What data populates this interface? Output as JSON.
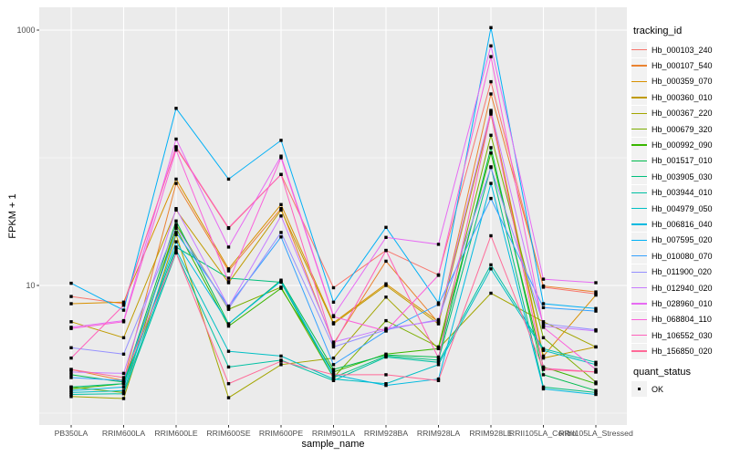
{
  "figure": {
    "background": "#FFFFFF",
    "panel_background": "#EBEBEB",
    "gridline_color": "#FFFFFF",
    "tick_color": "#333333",
    "tick_label_color": "#4D4D4D"
  },
  "legend": {
    "title": "tracking_id"
  },
  "quant_legend": {
    "title": "quant_status",
    "items": [
      {
        "label": "OK",
        "marker": "black-square"
      }
    ]
  },
  "chart_data": {
    "type": "line",
    "title": "",
    "xlabel": "sample_name",
    "ylabel": "FPKM + 1",
    "y_scale": "log10",
    "ylim": [
      0.8,
      1500
    ],
    "y_ticks": [
      1000,
      10
    ],
    "y_tick_labels": [
      "1000",
      "10"
    ],
    "y_minor": [
      100,
      1
    ],
    "grid": "white-on-gray",
    "legend_position": "right",
    "point_color": "#000000",
    "point_shape": "square",
    "categories": [
      "PB350LA",
      "RRIM600LA",
      "RRIM600LE",
      "RRIM600SE",
      "RRIM600PE",
      "RRIM901LA",
      "RRIM928BA",
      "RRIM928LA",
      "RRIM928LE",
      "RRII105LA_Control",
      "RRII105LA_Stressed"
    ],
    "series": [
      {
        "name": "Hb_000103_240",
        "color": "#F8766D",
        "values": [
          8.2,
          7.2,
          120,
          28,
          74,
          9.6,
          18.8,
          12.1,
          394,
          9.7,
          8.6
        ]
      },
      {
        "name": "Hb_000107_540",
        "color": "#EA8331",
        "values": [
          2.2,
          1.8,
          63,
          13,
          40,
          3.5,
          15.5,
          5.1,
          316,
          9.9,
          8.9
        ]
      },
      {
        "name": "Hb_000359_070",
        "color": "#D89000",
        "values": [
          7.2,
          7.4,
          68,
          13.5,
          43,
          5.1,
          10.3,
          5.2,
          230,
          2.8,
          8.4
        ]
      },
      {
        "name": "Hb_000360_010",
        "color": "#C09B00",
        "values": [
          5.2,
          3.9,
          39,
          10.5,
          39,
          5.0,
          10.0,
          5.0,
          220,
          2.7,
          3.3
        ]
      },
      {
        "name": "Hb_000367_220",
        "color": "#A3A500",
        "values": [
          1.35,
          1.3,
          25,
          1.32,
          2.4,
          2.7,
          8.1,
          3.2,
          8.7,
          5.2,
          3.3
        ]
      },
      {
        "name": "Hb_000679_320",
        "color": "#7CAE00",
        "values": [
          1.6,
          1.45,
          30,
          6.5,
          9.7,
          1.9,
          5.3,
          3.3,
          150,
          3.9,
          1.75
        ]
      },
      {
        "name": "Hb_000992_090",
        "color": "#39B600",
        "values": [
          1.55,
          1.7,
          28,
          4.8,
          9.5,
          2.1,
          2.9,
          3.2,
          109,
          2.3,
          1.7
        ]
      },
      {
        "name": "Hb_001517_010",
        "color": "#00BB4E",
        "values": [
          2.0,
          1.75,
          32,
          5.0,
          11.0,
          2.2,
          2.85,
          2.75,
          120,
          2.0,
          1.5
        ]
      },
      {
        "name": "Hb_003905_030",
        "color": "#00BF7D",
        "values": [
          1.6,
          1.7,
          20,
          11.4,
          10.6,
          1.9,
          2.8,
          2.6,
          85,
          1.6,
          1.45
        ]
      },
      {
        "name": "Hb_003944_010",
        "color": "#00C1A3",
        "values": [
          1.4,
          1.42,
          18,
          2.3,
          2.6,
          1.8,
          2.75,
          2.5,
          14.5,
          3.2,
          2.5
        ]
      },
      {
        "name": "Hb_004979_050",
        "color": "#00BFC4",
        "values": [
          1.45,
          1.5,
          19,
          3.05,
          2.8,
          1.85,
          1.7,
          2.4,
          13.5,
          3.1,
          2.4
        ]
      },
      {
        "name": "Hb_006816_040",
        "color": "#00BAE0",
        "values": [
          1.5,
          1.6,
          22,
          5.0,
          10.8,
          2.0,
          1.65,
          1.85,
          63,
          1.55,
          1.4
        ]
      },
      {
        "name": "Hb_007595_020",
        "color": "#00B0F6",
        "values": [
          10.4,
          6.4,
          244,
          68,
          137,
          7.4,
          28.5,
          7.3,
          1045,
          7.2,
          6.6
        ]
      },
      {
        "name": "Hb_010080_070",
        "color": "#35A2FF",
        "values": [
          1.9,
          1.8,
          26,
          6.9,
          24,
          2.4,
          4.4,
          7.1,
          48,
          6.7,
          6.3
        ]
      },
      {
        "name": "Hb_011900_020",
        "color": "#9590FF",
        "values": [
          3.25,
          2.9,
          29,
          6.6,
          26,
          3.3,
          4.5,
          5.4,
          84,
          5.0,
          4.5
        ]
      },
      {
        "name": "Hb_012940_020",
        "color": "#C77CFF",
        "values": [
          2.1,
          2.05,
          40,
          6.8,
          35,
          3.6,
          4.6,
          5.3,
          235,
          4.8,
          4.4
        ]
      },
      {
        "name": "Hb_028960_010",
        "color": "#E76BF3",
        "values": [
          4.7,
          5.3,
          140,
          20,
          103,
          5.8,
          23.8,
          21,
          752,
          11.2,
          10.5
        ]
      },
      {
        "name": "Hb_068804_110",
        "color": "#FA62DB",
        "values": [
          4.6,
          5.2,
          115,
          10.7,
          100,
          5.7,
          4.4,
          12,
          620,
          4.7,
          2.2
        ]
      },
      {
        "name": "Hb_106552_030",
        "color": "#FF62BC",
        "values": [
          2.7,
          7.0,
          122,
          28.3,
          74,
          3.4,
          18.8,
          2.7,
          225,
          2.25,
          2.1
        ]
      },
      {
        "name": "Hb_156850_020",
        "color": "#FF6A98",
        "values": [
          2.2,
          1.9,
          18,
          1.7,
          2.55,
          2.0,
          2.0,
          1.8,
          24.5,
          2.2,
          2.1
        ]
      }
    ]
  }
}
